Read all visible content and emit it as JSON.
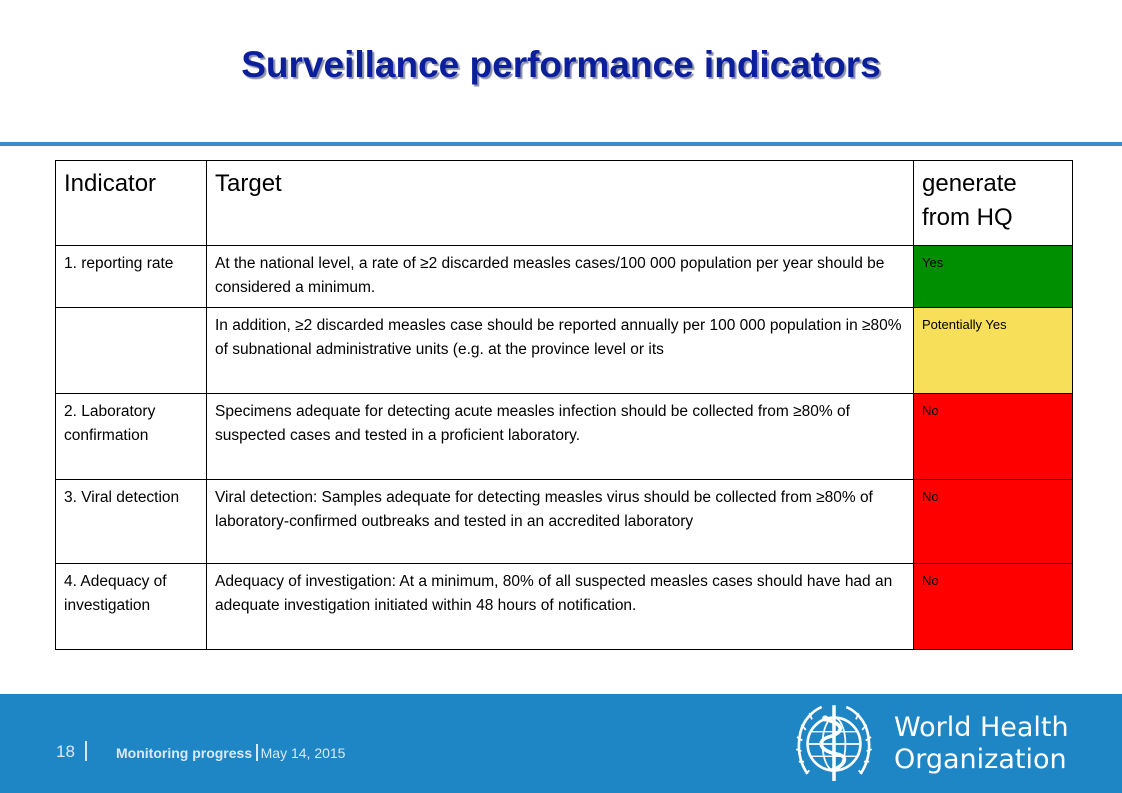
{
  "title": "Surveillance performance indicators",
  "table": {
    "headers": [
      "Indicator",
      "Target",
      "generate from HQ"
    ],
    "rows": [
      {
        "indicator": "1. reporting rate",
        "target": "At the national level, a rate of ≥2 discarded measles cases/100 000 population per year should be considered a minimum.",
        "hq": "Yes",
        "hq_color": "#008f00"
      },
      {
        "indicator": "",
        "target": "In addition, ≥2 discarded measles case should be reported annually per 100 000 population in ≥80% of subnational administrative units (e.g. at the province level or its",
        "hq": "Potentially Yes",
        "hq_color": "#f7df59"
      },
      {
        "indicator": "2. Laboratory confirmation",
        "target": "Specimens adequate for detecting acute measles infection should be collected from ≥80% of suspected cases and tested in a proficient laboratory.",
        "hq": "No",
        "hq_color": "#ff0000"
      },
      {
        "indicator": "3. Viral detection",
        "target": "Viral detection: Samples adequate for detecting measles virus should be collected from ≥80% of laboratory-confirmed outbreaks and tested in an accredited laboratory",
        "hq": "No",
        "hq_color": "#ff0000"
      },
      {
        "indicator": "4. Adequacy of investigation",
        "target": "Adequacy of investigation: At a minimum, 80% of all suspected measles cases should have had an adequate investigation initiated within 48 hours of notification.",
        "hq": "No",
        "hq_color": "#ff0000"
      }
    ]
  },
  "footer": {
    "page_number": "18",
    "section": "Monitoring progress",
    "date": "May 14, 2015",
    "org_line1": "World Health",
    "org_line2": "Organization",
    "background_color": "#1f86c6"
  },
  "icons": {
    "logo": "who-emblem-icon"
  }
}
